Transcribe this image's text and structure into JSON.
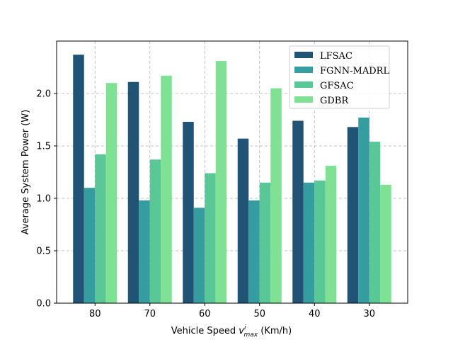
{
  "chart_data": {
    "type": "bar",
    "categories": [
      "80",
      "70",
      "60",
      "50",
      "40",
      "30"
    ],
    "series": [
      {
        "name": "LFSAC",
        "color": "#215474",
        "values": [
          2.37,
          2.11,
          1.73,
          1.57,
          1.74,
          1.68
        ]
      },
      {
        "name": "FGNN-MADRL",
        "color": "#359c9f",
        "values": [
          1.1,
          0.98,
          0.91,
          0.98,
          1.15,
          1.77
        ]
      },
      {
        "name": "GFSAC",
        "color": "#5ac896",
        "values": [
          1.42,
          1.37,
          1.24,
          1.15,
          1.17,
          1.54
        ]
      },
      {
        "name": "GDBR",
        "color": "#7ee194",
        "values": [
          2.1,
          2.17,
          2.31,
          2.05,
          1.31,
          1.13
        ]
      }
    ],
    "xlabel": {
      "prefix": "Vehicle Speed ",
      "var": "v",
      "sup": "i",
      "sub": "max",
      "suffix": " (Km/h)"
    },
    "ylabel": "Average System Power (W)",
    "ylim": [
      0,
      2.5
    ],
    "yticks": [
      "0.0",
      "0.5",
      "1.0",
      "1.5",
      "2.0"
    ],
    "grid": true,
    "legend_position": "upper-right"
  }
}
